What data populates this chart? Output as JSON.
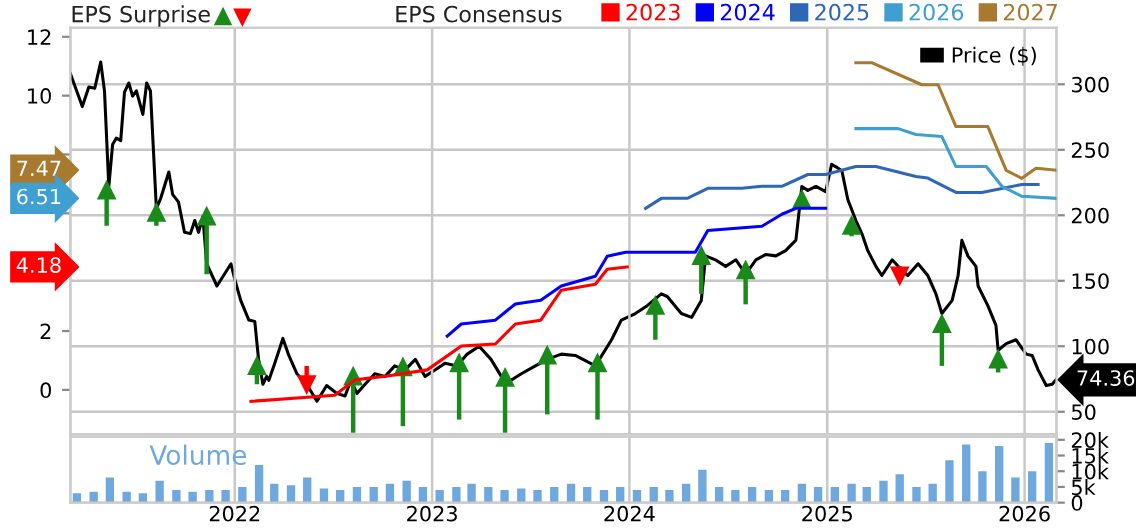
{
  "chart_data": [
    {
      "type": "line",
      "annotations": [
        "EPS Surprise",
        "EPS Consensus",
        "7.47",
        "6.51",
        "4.18"
      ],
      "xlim": [
        "2021-03-03",
        "2026-03-01"
      ],
      "xticks": [
        {
          "value": "2022-01-01",
          "label": null
        },
        {
          "value": "2023-01-01",
          "label": null
        },
        {
          "value": "2024-01-01",
          "label": null
        },
        {
          "value": "2025-01-01",
          "label": null
        },
        {
          "value": "2026-01-01",
          "label": null
        }
      ],
      "ylim": [
        -1.5,
        12.3
      ],
      "yticks": [
        0,
        2,
        {
          "value": 4,
          "label": null
        },
        {
          "value": 6,
          "label": null
        },
        {
          "value": 8,
          "label": null
        },
        10,
        12
      ],
      "y2lim": [
        33,
        343
      ],
      "y2ticks": [
        50,
        100,
        150,
        200,
        250,
        300
      ],
      "grid": true,
      "legend": "top right",
      "tick_labels": "y",
      "series": [
        {
          "name": "2023",
          "color": "#ff0000",
          "x": [
            "2022-01-31",
            "2022-07-05",
            "2022-08-11",
            "2022-10-10",
            "2022-12-23",
            "2023-02-24",
            "2023-04-28",
            "2023-06-04",
            "2023-07-21",
            "2023-08-28",
            "2023-10-30",
            "2023-11-21",
            "2023-12-28"
          ],
          "values": [
            -0.39,
            -0.18,
            0.34,
            0.47,
            0.68,
            1.49,
            1.56,
            2.24,
            2.37,
            3.39,
            3.59,
            4.1,
            4.18
          ]
        },
        {
          "name": "2024",
          "color": "#0000ff",
          "x": [
            "2023-01-29",
            "2023-02-24",
            "2023-04-28",
            "2023-06-04",
            "2023-07-21",
            "2023-08-28",
            "2023-10-30",
            "2023-11-21",
            "2023-12-25",
            "2024-05-02",
            "2024-05-25",
            "2024-09-02",
            "2024-10-09",
            "2024-11-04",
            "2024-12-29"
          ],
          "values": [
            1.83,
            2.24,
            2.37,
            2.92,
            3.05,
            3.53,
            3.86,
            4.54,
            4.68,
            4.68,
            5.42,
            5.56,
            5.97,
            6.17,
            6.17
          ]
        },
        {
          "name": "2025",
          "color": "#2e66b8",
          "x": [
            "2024-01-31",
            "2024-02-29",
            "2024-04-17",
            "2024-05-25",
            "2024-07-27",
            "2024-09-02",
            "2024-10-09",
            "2024-11-26",
            "2024-12-29",
            "2025-02-23",
            "2025-04-01",
            "2025-06-14",
            "2025-07-06",
            "2025-08-27",
            "2025-10-14",
            "2025-12-27",
            "2026-01-26"
          ],
          "values": [
            6.17,
            6.51,
            6.51,
            6.85,
            6.85,
            6.92,
            6.92,
            7.32,
            7.32,
            7.59,
            7.59,
            7.25,
            7.2,
            6.71,
            6.71,
            6.98,
            6.98
          ]
        },
        {
          "name": "2026",
          "color": "#3f9fd0",
          "x": [
            "2025-02-23",
            "2025-05-12",
            "2025-06-14",
            "2025-08-01",
            "2025-08-27",
            "2025-10-22",
            "2025-11-20",
            "2025-12-27",
            "2026-02-28"
          ],
          "values": [
            8.88,
            8.88,
            8.68,
            8.61,
            7.59,
            7.59,
            6.92,
            6.58,
            6.51
          ]
        },
        {
          "name": "2027",
          "color": "#a87a30",
          "x": [
            "2025-02-23",
            "2025-03-24",
            "2025-06-25",
            "2025-07-25",
            "2025-08-27",
            "2025-10-25",
            "2025-11-28",
            "2025-12-27",
            "2026-01-22",
            "2026-02-28"
          ],
          "values": [
            11.12,
            11.12,
            10.37,
            10.37,
            8.95,
            8.95,
            7.46,
            7.19,
            7.53,
            7.47
          ]
        },
        {
          "name": "Price ($)",
          "color": "#000000",
          "axis": "y2",
          "x": [
            "2021-03-03",
            "2021-03-25",
            "2021-04-06",
            "2021-04-17",
            "2021-04-28",
            "2021-05-05",
            "2021-05-13",
            "2021-05-20",
            "2021-05-27",
            "2021-06-04",
            "2021-06-11",
            "2021-06-19",
            "2021-06-26",
            "2021-07-03",
            "2021-07-15",
            "2021-07-22",
            "2021-07-29",
            "2021-08-09",
            "2021-08-17",
            "2021-09-01",
            "2021-09-08",
            "2021-09-19",
            "2021-09-30",
            "2021-10-11",
            "2021-10-19",
            "2021-10-26",
            "2021-11-03",
            "2021-11-10",
            "2021-11-29",
            "2021-12-25",
            "2022-01-01",
            "2022-01-12",
            "2022-01-27",
            "2022-02-07",
            "2022-02-14",
            "2022-02-22",
            "2022-03-01",
            "2022-03-05",
            "2022-03-16",
            "2022-03-31",
            "2022-04-11",
            "2022-04-26",
            "2022-05-14",
            "2022-06-02",
            "2022-06-20",
            "2022-07-09",
            "2022-07-24",
            "2022-08-04",
            "2022-08-15",
            "2022-08-30",
            "2022-09-17",
            "2022-10-06",
            "2022-10-24",
            "2022-11-12",
            "2022-12-01",
            "2022-12-19",
            "2023-01-07",
            "2023-01-25",
            "2023-02-16",
            "2023-03-07",
            "2023-03-29",
            "2023-04-20",
            "2023-05-09",
            "2023-05-27",
            "2023-06-15",
            "2023-07-11",
            "2023-08-02",
            "2023-08-28",
            "2023-09-23",
            "2023-10-30",
            "2023-11-29",
            "2023-12-17",
            "2024-01-12",
            "2024-02-03",
            "2024-02-29",
            "2024-03-11",
            "2024-04-06",
            "2024-04-25",
            "2024-05-13",
            "2024-05-21",
            "2024-06-08",
            "2024-06-27",
            "2024-07-16",
            "2024-08-03",
            "2024-08-22",
            "2024-09-09",
            "2024-09-28",
            "2024-10-16",
            "2024-11-04",
            "2024-11-15",
            "2024-11-26",
            "2024-12-11",
            "2024-12-29",
            "2025-01-09",
            "2025-01-17",
            "2025-01-28",
            "2025-02-08",
            "2025-02-23",
            "2025-03-06",
            "2025-03-17",
            "2025-04-01",
            "2025-04-12",
            "2025-05-01",
            "2025-05-19",
            "2025-05-30",
            "2025-06-18",
            "2025-07-06",
            "2025-07-21",
            "2025-08-01",
            "2025-08-20",
            "2025-08-31",
            "2025-09-07",
            "2025-09-18",
            "2025-10-03",
            "2025-10-07",
            "2025-10-25",
            "2025-11-09",
            "2025-11-13",
            "2025-11-28",
            "2025-12-16",
            "2026-01-04",
            "2026-01-15",
            "2026-01-26",
            "2026-02-10",
            "2026-02-21",
            "2026-02-28"
          ],
          "values": [
            308,
            283,
            298,
            297,
            317,
            295,
            222,
            254,
            259,
            257,
            294,
            301,
            291,
            295,
            277,
            301,
            295,
            205,
            213,
            233,
            216,
            210,
            187,
            186,
            196,
            187,
            199,
            163,
            146,
            163,
            151,
            135,
            120,
            119,
            90,
            71,
            77,
            74,
            87,
            106,
            93,
            79,
            71,
            58,
            70,
            64,
            62,
            74,
            64,
            71,
            79,
            77,
            85,
            82,
            90,
            77,
            82,
            87,
            85,
            94,
            100,
            90,
            77,
            74,
            79,
            85,
            90,
            94,
            93,
            85,
            105,
            120,
            125,
            131,
            140,
            138,
            125,
            122,
            135,
            169,
            166,
            161,
            166,
            155,
            166,
            170,
            169,
            173,
            181,
            222,
            219,
            222,
            218,
            239,
            237,
            234,
            212,
            196,
            186,
            173,
            161,
            154,
            166,
            158,
            154,
            163,
            154,
            140,
            125,
            135,
            154,
            181,
            169,
            161,
            146,
            131,
            116,
            97,
            102,
            105,
            94,
            93,
            82,
            70,
            71,
            74.36
          ],
          "value_labels": [
            null,
            null,
            null,
            null,
            null,
            null,
            null,
            null,
            null,
            null,
            null,
            null,
            null,
            null,
            null,
            null,
            null,
            null,
            null,
            null,
            null,
            null,
            null,
            null,
            null,
            null,
            null,
            null,
            null,
            null,
            null,
            null,
            null,
            null,
            null,
            null,
            null,
            null,
            null,
            null,
            null,
            null,
            null,
            null,
            null,
            null,
            null,
            null,
            null,
            null,
            null,
            null,
            null,
            null,
            null,
            null,
            null,
            null,
            null,
            null,
            null,
            null,
            null,
            null,
            null,
            null,
            null,
            null,
            null,
            null,
            null,
            null,
            null,
            null,
            null,
            null,
            null,
            null,
            null,
            null,
            null,
            null,
            null,
            null,
            null,
            null,
            null,
            null,
            null,
            null,
            null,
            null,
            null,
            null,
            null,
            null,
            null,
            null,
            null,
            null,
            null,
            null,
            null,
            null,
            null,
            null,
            null,
            null,
            null,
            null,
            null,
            null,
            null,
            null,
            null,
            null,
            null,
            null,
            null,
            null,
            null,
            null,
            null,
            null,
            null,
            "74.36"
          ]
        },
        {
          "type": "scatter",
          "color": "#1a8a1a",
          "marker": "triangle",
          "axis": "y2",
          "x": [
            "2021-05-09",
            "2021-08-09",
            "2021-11-10",
            "2022-02-11",
            "2022-08-08",
            "2022-11-08",
            "2023-02-20",
            "2023-05-16",
            "2023-08-02",
            "2023-11-03",
            "2024-02-18",
            "2024-05-13",
            "2024-08-03",
            "2024-11-15",
            "2025-02-15",
            "2025-08-01",
            "2025-11-13"
          ],
          "values": [
            219,
            202,
            199,
            85,
            77,
            84,
            87,
            76,
            93,
            87,
            131,
            169,
            158,
            212,
            192,
            117,
            90
          ],
          "errors": [
            [
              192,
              219
            ],
            [
              192,
              202
            ],
            [
              155,
              199
            ],
            [
              71,
              85
            ],
            [
              34,
              77
            ],
            [
              39,
              84
            ],
            [
              44,
              87
            ],
            [
              34,
              76
            ],
            [
              48,
              93
            ],
            [
              44,
              87
            ],
            [
              105,
              131
            ],
            [
              140,
              169
            ],
            [
              132,
              158
            ],
            [
              207,
              212
            ],
            [
              184,
              192
            ],
            [
              85,
              117
            ],
            [
              80,
              90
            ]
          ]
        },
        {
          "type": "scatter",
          "color": "#ff0000",
          "marker": "triangle",
          "axis": "y2",
          "x": [
            "2022-05-14",
            "2025-05-15"
          ],
          "values": [
            71,
            154
          ],
          "errors": [
            [
              71,
              85
            ],
            [
              154,
              161
            ]
          ]
        }
      ]
    },
    {
      "type": "bar",
      "annotations": [
        "Volume"
      ],
      "xlim": [
        "2021-03-03",
        "2026-03-01"
      ],
      "xticks": [
        {
          "value": "2022-01-01",
          "label": "2022"
        },
        {
          "value": "2023-01-01",
          "label": "2023"
        },
        {
          "value": "2024-01-01",
          "label": "2024"
        },
        {
          "value": "2025-01-01",
          "label": "2025"
        },
        {
          "value": "2026-01-01",
          "label": "2026"
        }
      ],
      "y2lim": [
        0,
        21000
      ],
      "y2ticks": [
        {
          "value": 0,
          "label": "0"
        },
        {
          "value": 5000,
          "label": "5k"
        },
        {
          "value": 10000,
          "label": "10k"
        },
        {
          "value": 15000,
          "label": "15k"
        },
        {
          "value": 20000,
          "label": "20k"
        }
      ],
      "grid": "x",
      "series": [
        {
          "color": "#6fa8dc",
          "axis": "y2",
          "x": [
            "2021-03-15",
            "2021-04-15",
            "2021-05-15",
            "2021-06-15",
            "2021-07-15",
            "2021-08-15",
            "2021-09-15",
            "2021-10-15",
            "2021-11-15",
            "2021-12-15",
            "2022-01-15",
            "2022-02-15",
            "2022-03-15",
            "2022-04-15",
            "2022-05-15",
            "2022-06-15",
            "2022-07-15",
            "2022-08-15",
            "2022-09-15",
            "2022-10-15",
            "2022-11-15",
            "2022-12-15",
            "2023-01-15",
            "2023-02-15",
            "2023-03-15",
            "2023-04-15",
            "2023-05-15",
            "2023-06-15",
            "2023-07-15",
            "2023-08-15",
            "2023-09-15",
            "2023-10-15",
            "2023-11-15",
            "2023-12-15",
            "2024-01-15",
            "2024-02-15",
            "2024-03-15",
            "2024-04-15",
            "2024-05-15",
            "2024-06-15",
            "2024-07-15",
            "2024-08-15",
            "2024-09-15",
            "2024-10-15",
            "2024-11-15",
            "2024-12-15",
            "2025-01-15",
            "2025-02-15",
            "2025-03-15",
            "2025-04-15",
            "2025-05-15",
            "2025-06-15",
            "2025-07-15",
            "2025-08-15",
            "2025-09-15",
            "2025-10-15",
            "2025-11-15",
            "2025-12-15",
            "2026-01-15",
            "2026-02-15"
          ],
          "values": [
            3000,
            3500,
            8000,
            3500,
            3000,
            7000,
            4000,
            3500,
            4000,
            4000,
            5000,
            12000,
            6000,
            5500,
            8000,
            4500,
            4000,
            5000,
            5000,
            6000,
            7000,
            5000,
            4000,
            5000,
            6000,
            5000,
            4000,
            4500,
            4000,
            5000,
            6000,
            5000,
            4000,
            5000,
            4000,
            5000,
            4000,
            6000,
            10500,
            5000,
            4000,
            5000,
            4000,
            4000,
            6000,
            5000,
            5000,
            6000,
            5000,
            7000,
            9000,
            5000,
            6000,
            13500,
            18500,
            10000,
            18000,
            8000,
            10000,
            19000
          ]
        }
      ]
    }
  ]
}
